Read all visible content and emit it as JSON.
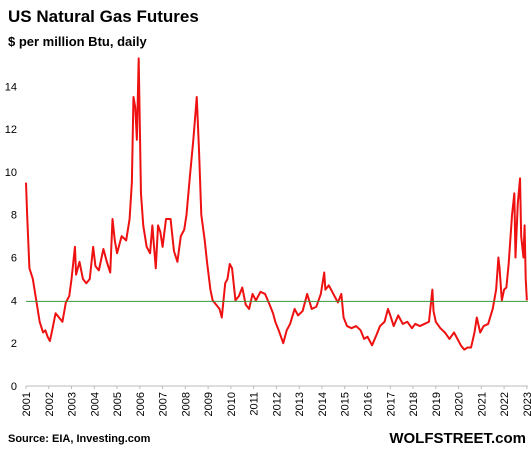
{
  "chart_data": {
    "type": "line",
    "title": "US Natural Gas Futures",
    "subtitle": "$ per million Btu, daily",
    "source": "Source: EIA, Investing.com",
    "brand": "WOLFSTREET.com",
    "color": "#ee1111",
    "reference_line": 3.95,
    "reference_color": "#3a9a3a",
    "xlim": [
      2001,
      2023.05
    ],
    "xticks": [
      2001,
      2002,
      2003,
      2004,
      2005,
      2006,
      2007,
      2008,
      2009,
      2010,
      2011,
      2012,
      2013,
      2014,
      2015,
      2016,
      2017,
      2018,
      2019,
      2020,
      2021,
      2022,
      2023
    ],
    "ylim": [
      0,
      15.6
    ],
    "yticks": [
      0,
      2,
      4,
      6,
      8,
      10,
      12,
      14
    ],
    "x": [
      2001.0,
      2001.05,
      2001.15,
      2001.3,
      2001.45,
      2001.6,
      2001.75,
      2001.85,
      2001.95,
      2002.05,
      2002.15,
      2002.3,
      2002.45,
      2002.6,
      2002.75,
      2002.9,
      2003.0,
      2003.15,
      2003.2,
      2003.35,
      2003.5,
      2003.65,
      2003.8,
      2003.95,
      2004.05,
      2004.2,
      2004.4,
      2004.55,
      2004.7,
      2004.8,
      2004.9,
      2005.0,
      2005.2,
      2005.4,
      2005.55,
      2005.65,
      2005.72,
      2005.8,
      2005.87,
      2005.95,
      2006.05,
      2006.15,
      2006.3,
      2006.45,
      2006.55,
      2006.7,
      2006.8,
      2006.9,
      2007.0,
      2007.15,
      2007.35,
      2007.5,
      2007.65,
      2007.8,
      2007.95,
      2008.05,
      2008.2,
      2008.35,
      2008.5,
      2008.6,
      2008.7,
      2008.85,
      2008.95,
      2009.1,
      2009.2,
      2009.35,
      2009.5,
      2009.6,
      2009.75,
      2009.85,
      2009.95,
      2010.05,
      2010.2,
      2010.35,
      2010.5,
      2010.65,
      2010.8,
      2010.95,
      2011.1,
      2011.3,
      2011.5,
      2011.7,
      2011.85,
      2011.95,
      2012.1,
      2012.3,
      2012.45,
      2012.6,
      2012.8,
      2012.95,
      2013.15,
      2013.35,
      2013.55,
      2013.75,
      2013.95,
      2014.1,
      2014.15,
      2014.3,
      2014.5,
      2014.7,
      2014.85,
      2014.95,
      2015.1,
      2015.3,
      2015.5,
      2015.7,
      2015.85,
      2016.0,
      2016.2,
      2016.4,
      2016.55,
      2016.75,
      2016.9,
      2017.0,
      2017.15,
      2017.35,
      2017.55,
      2017.75,
      2017.95,
      2018.1,
      2018.3,
      2018.5,
      2018.7,
      2018.85,
      2018.9,
      2019.0,
      2019.2,
      2019.4,
      2019.6,
      2019.8,
      2019.95,
      2020.1,
      2020.25,
      2020.4,
      2020.55,
      2020.7,
      2020.8,
      2020.95,
      2021.1,
      2021.3,
      2021.5,
      2021.65,
      2021.75,
      2021.8,
      2021.9,
      2022.0,
      2022.1,
      2022.2,
      2022.35,
      2022.45,
      2022.5,
      2022.6,
      2022.7,
      2022.75,
      2022.85,
      2022.9,
      2022.95,
      2023.0
    ],
    "values": [
      9.5,
      8.0,
      5.5,
      5.0,
      4.0,
      3.0,
      2.5,
      2.6,
      2.3,
      2.1,
      2.6,
      3.4,
      3.2,
      3.0,
      3.9,
      4.2,
      5.0,
      6.5,
      5.2,
      5.8,
      5.0,
      4.8,
      5.0,
      6.5,
      5.6,
      5.4,
      6.4,
      5.8,
      5.3,
      7.8,
      6.8,
      6.2,
      7.0,
      6.8,
      7.8,
      9.5,
      13.5,
      13.0,
      11.5,
      15.3,
      9.0,
      7.5,
      6.5,
      6.2,
      7.5,
      5.5,
      7.5,
      7.2,
      6.5,
      7.8,
      7.8,
      6.3,
      5.8,
      7.0,
      7.3,
      8.0,
      9.8,
      11.5,
      13.5,
      11.0,
      8.0,
      6.8,
      5.8,
      4.5,
      4.0,
      3.8,
      3.6,
      3.2,
      4.8,
      5.0,
      5.7,
      5.5,
      4.0,
      4.2,
      4.6,
      3.8,
      3.6,
      4.3,
      4.0,
      4.4,
      4.3,
      3.8,
      3.4,
      3.0,
      2.6,
      2.0,
      2.6,
      2.9,
      3.6,
      3.3,
      3.5,
      4.3,
      3.6,
      3.7,
      4.3,
      5.3,
      4.5,
      4.7,
      4.3,
      3.9,
      4.3,
      3.2,
      2.8,
      2.7,
      2.8,
      2.6,
      2.2,
      2.3,
      1.9,
      2.4,
      2.8,
      3.0,
      3.6,
      3.3,
      2.8,
      3.3,
      2.9,
      3.0,
      2.7,
      2.9,
      2.8,
      2.9,
      3.0,
      4.5,
      3.5,
      3.0,
      2.7,
      2.5,
      2.2,
      2.5,
      2.2,
      1.9,
      1.7,
      1.8,
      1.8,
      2.5,
      3.2,
      2.5,
      2.8,
      2.9,
      3.6,
      4.5,
      6.0,
      5.5,
      4.0,
      4.5,
      4.6,
      5.7,
      8.0,
      9.0,
      6.0,
      8.5,
      9.7,
      7.0,
      6.0,
      7.5,
      5.0,
      4.0
    ]
  }
}
